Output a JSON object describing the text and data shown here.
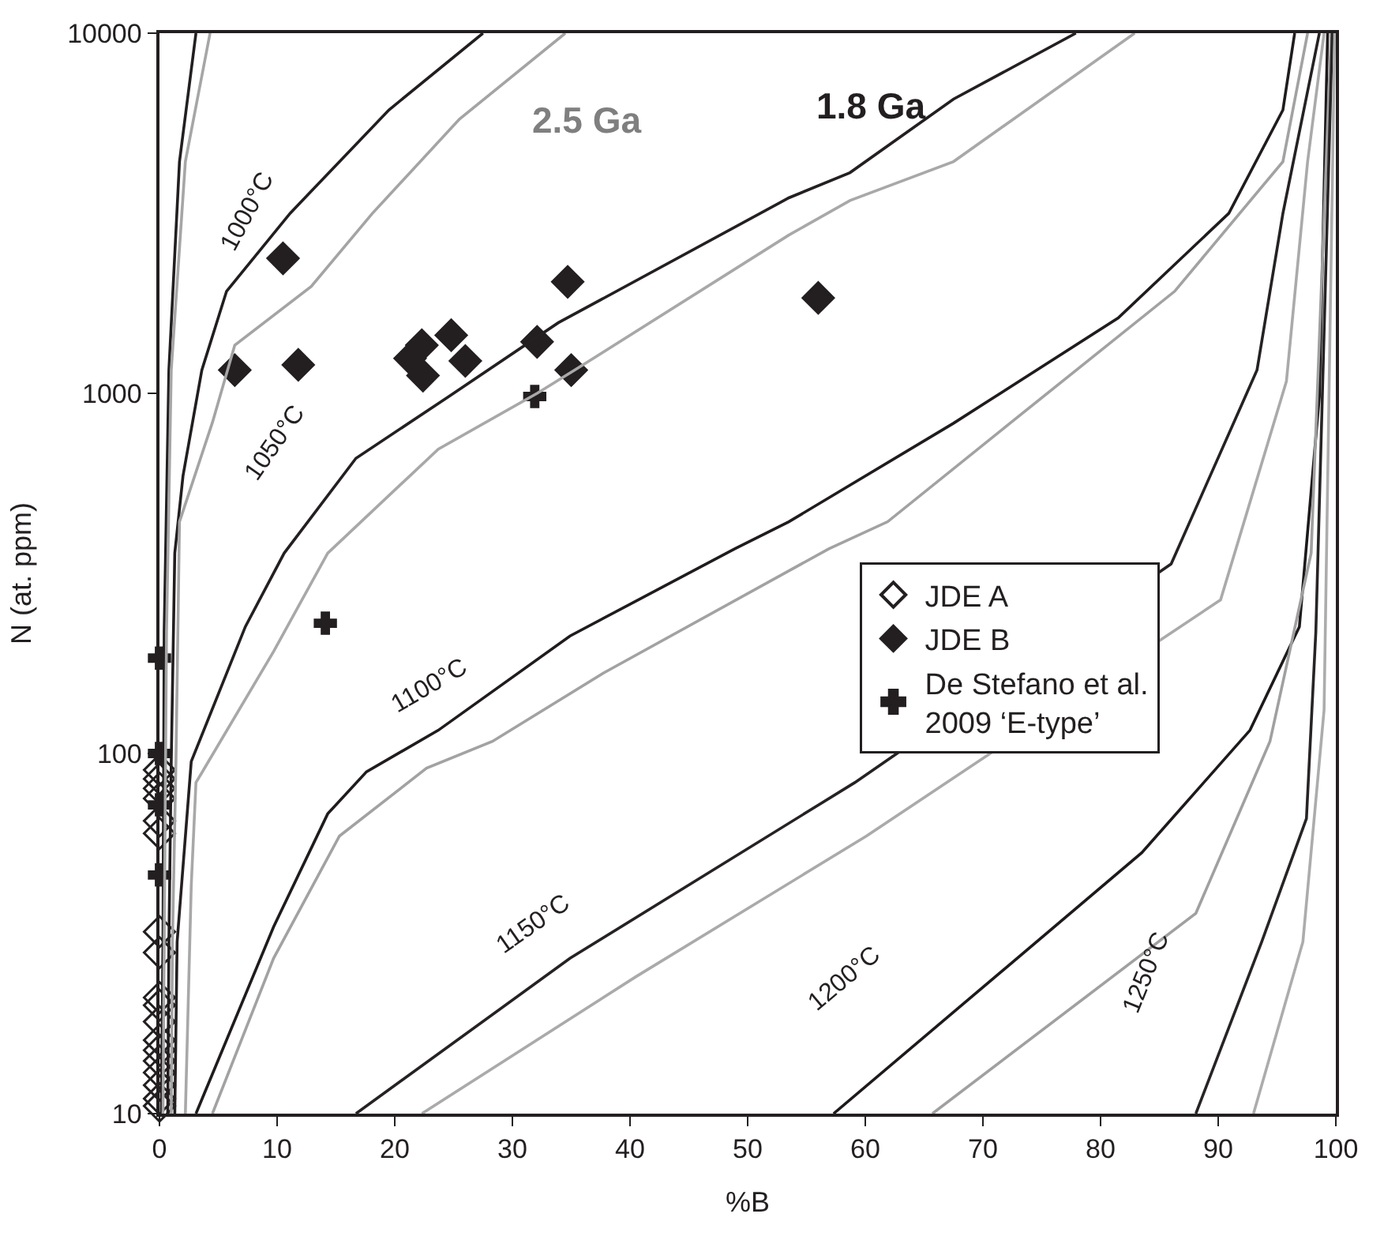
{
  "chart_data": {
    "type": "scatter",
    "xlabel": "%B",
    "ylabel": "N (at. ppm)",
    "xlim": [
      0,
      100
    ],
    "xticks": [
      0,
      10,
      20,
      30,
      40,
      50,
      60,
      70,
      80,
      90,
      100
    ],
    "ylim": [
      10,
      10000
    ],
    "yticks": [
      10,
      100,
      1000,
      10000
    ],
    "log": "y",
    "grid": false,
    "legend": "right",
    "series": [
      {
        "name": "JDE A",
        "color": "#231f20",
        "marker": "diamond-open",
        "x": [
          0,
          0,
          0,
          0,
          0,
          0,
          0,
          0,
          0,
          0,
          0,
          0,
          0,
          0,
          0,
          0,
          0,
          0
        ],
        "values": [
          90,
          85,
          80,
          75,
          65,
          60,
          32,
          28,
          21,
          20,
          18,
          16,
          15,
          14,
          13,
          12,
          11,
          10.5
        ]
      },
      {
        "name": "JDE B",
        "color": "#231f20",
        "marker": "diamond",
        "x": [
          6.4,
          10.5,
          11.8,
          21.3,
          22.3,
          22.4,
          24.8,
          26.0,
          32.1,
          34.7,
          35.0,
          56.0
        ],
        "values": [
          1160,
          2370,
          1200,
          1250,
          1360,
          1120,
          1450,
          1230,
          1390,
          2040,
          1160,
          1840
        ]
      },
      {
        "name": "De Stefano et al. 2009 ‘E-type’",
        "color": "#231f20",
        "marker": "cross",
        "x": [
          31.9,
          14.1,
          0,
          0,
          0,
          0
        ],
        "values": [
          980,
          230,
          184,
          100,
          72,
          46
        ]
      },
      {
        "type": "line",
        "color": "#231f20",
        "x": [
          3.1,
          1.7,
          0.8,
          0.4,
          0.3,
          0.15
        ],
        "values": [
          10000,
          4400,
          1160,
          218,
          30,
          10
        ]
      },
      {
        "type": "line",
        "color": "#a6a6a6",
        "x": [
          4.3,
          2.2,
          1.0,
          0.6,
          0.4,
          0.3
        ],
        "values": [
          10000,
          4400,
          1160,
          218,
          30,
          10
        ]
      },
      {
        "type": "line",
        "color": "#221e1f",
        "x": [
          27.5,
          19.5,
          11.1,
          5.7,
          3.6,
          2.0,
          1.3,
          1.0,
          0.8,
          0.7
        ],
        "values": [
          10000,
          6120,
          3160,
          1920,
          1160,
          590,
          360,
          95,
          30,
          10
        ]
      },
      {
        "type": "line",
        "color": "#a4a4a4",
        "x": [
          34.5,
          25.5,
          18.1,
          12.9,
          6.4,
          4.5,
          1.7,
          1.4,
          1.1,
          1.0
        ],
        "values": [
          10000,
          5770,
          3160,
          1980,
          1360,
          830,
          440,
          95,
          30,
          10
        ]
      },
      {
        "type": "line",
        "color": "#241f21",
        "x": [
          77.9,
          67.5,
          58.7,
          53.5,
          33.9,
          24.6,
          16.7,
          10.6,
          7.3,
          2.7,
          1.5,
          1.3
        ],
        "values": [
          10000,
          6560,
          4100,
          3490,
          1570,
          980,
          660,
          360,
          225,
          95,
          30,
          10
        ]
      },
      {
        "type": "line",
        "color": "#a8a8a8",
        "x": [
          82.9,
          67.5,
          58.7,
          53.5,
          35.3,
          32.1,
          23.7,
          14.3,
          9.7,
          3.1,
          2.7,
          2.2
        ],
        "values": [
          10000,
          4400,
          3430,
          2750,
          1160,
          1000,
          700,
          360,
          192,
          83,
          43,
          10
        ]
      },
      {
        "type": "line",
        "color": "#201c1d",
        "x": [
          3.1,
          9.7,
          14.3,
          17.6,
          23.7,
          34.9,
          48.9,
          53.5,
          67.5,
          81.5,
          90.9,
          95.5,
          96.5
        ],
        "values": [
          10,
          33,
          68,
          89,
          116,
          212,
          370,
          440,
          826,
          1620,
          3160,
          6120,
          10000
        ]
      },
      {
        "type": "line",
        "color": "#a2a2a2",
        "x": [
          4.5,
          9.7,
          15.3,
          22.7,
          28.3,
          37.7,
          56.9,
          61.9,
          72.3,
          86.3,
          95.5,
          97.6
        ],
        "values": [
          10,
          27,
          59,
          91,
          108,
          167,
          370,
          440,
          826,
          1920,
          4400,
          10000
        ]
      },
      {
        "type": "line",
        "color": "#262223",
        "x": [
          16.7,
          34.9,
          59.1,
          86.0,
          93.3,
          95.5,
          98.6
        ],
        "values": [
          10,
          27,
          83,
          336,
          1160,
          3160,
          10000
        ]
      },
      {
        "type": "line",
        "color": "#aaaaaa",
        "x": [
          22.3,
          40.5,
          60.1,
          90.2,
          95.8,
          97.6,
          99.0
        ],
        "values": [
          10,
          24,
          59,
          267,
          1080,
          4400,
          10000
        ]
      },
      {
        "type": "line",
        "color": "#1e1a1b",
        "x": [
          57.3,
          83.5,
          92.7,
          96.9,
          98.6,
          99.3
        ],
        "values": [
          10,
          53,
          116,
          225,
          980,
          10000
        ]
      },
      {
        "type": "line",
        "color": "#a0a0a0",
        "x": [
          65.7,
          88.1,
          94.4,
          97.9,
          99.6
        ],
        "values": [
          10,
          36,
          108,
          360,
          10000
        ]
      },
      {
        "type": "line",
        "color": "#282425",
        "x": [
          88.1,
          93.7,
          97.5,
          98.3,
          99.7
        ],
        "values": [
          10,
          30,
          66,
          218,
          10000
        ]
      },
      {
        "type": "line",
        "color": "#acacac",
        "x": [
          93.0,
          97.2,
          99.0,
          99.9
        ],
        "values": [
          10,
          30,
          132,
          10000
        ]
      }
    ],
    "annotations": [
      "2.5 Ga",
      "1.8 Ga",
      "1000°C",
      "1050°C",
      "1100°C",
      "1150°C",
      "1200°C",
      "1250°C"
    ]
  }
}
